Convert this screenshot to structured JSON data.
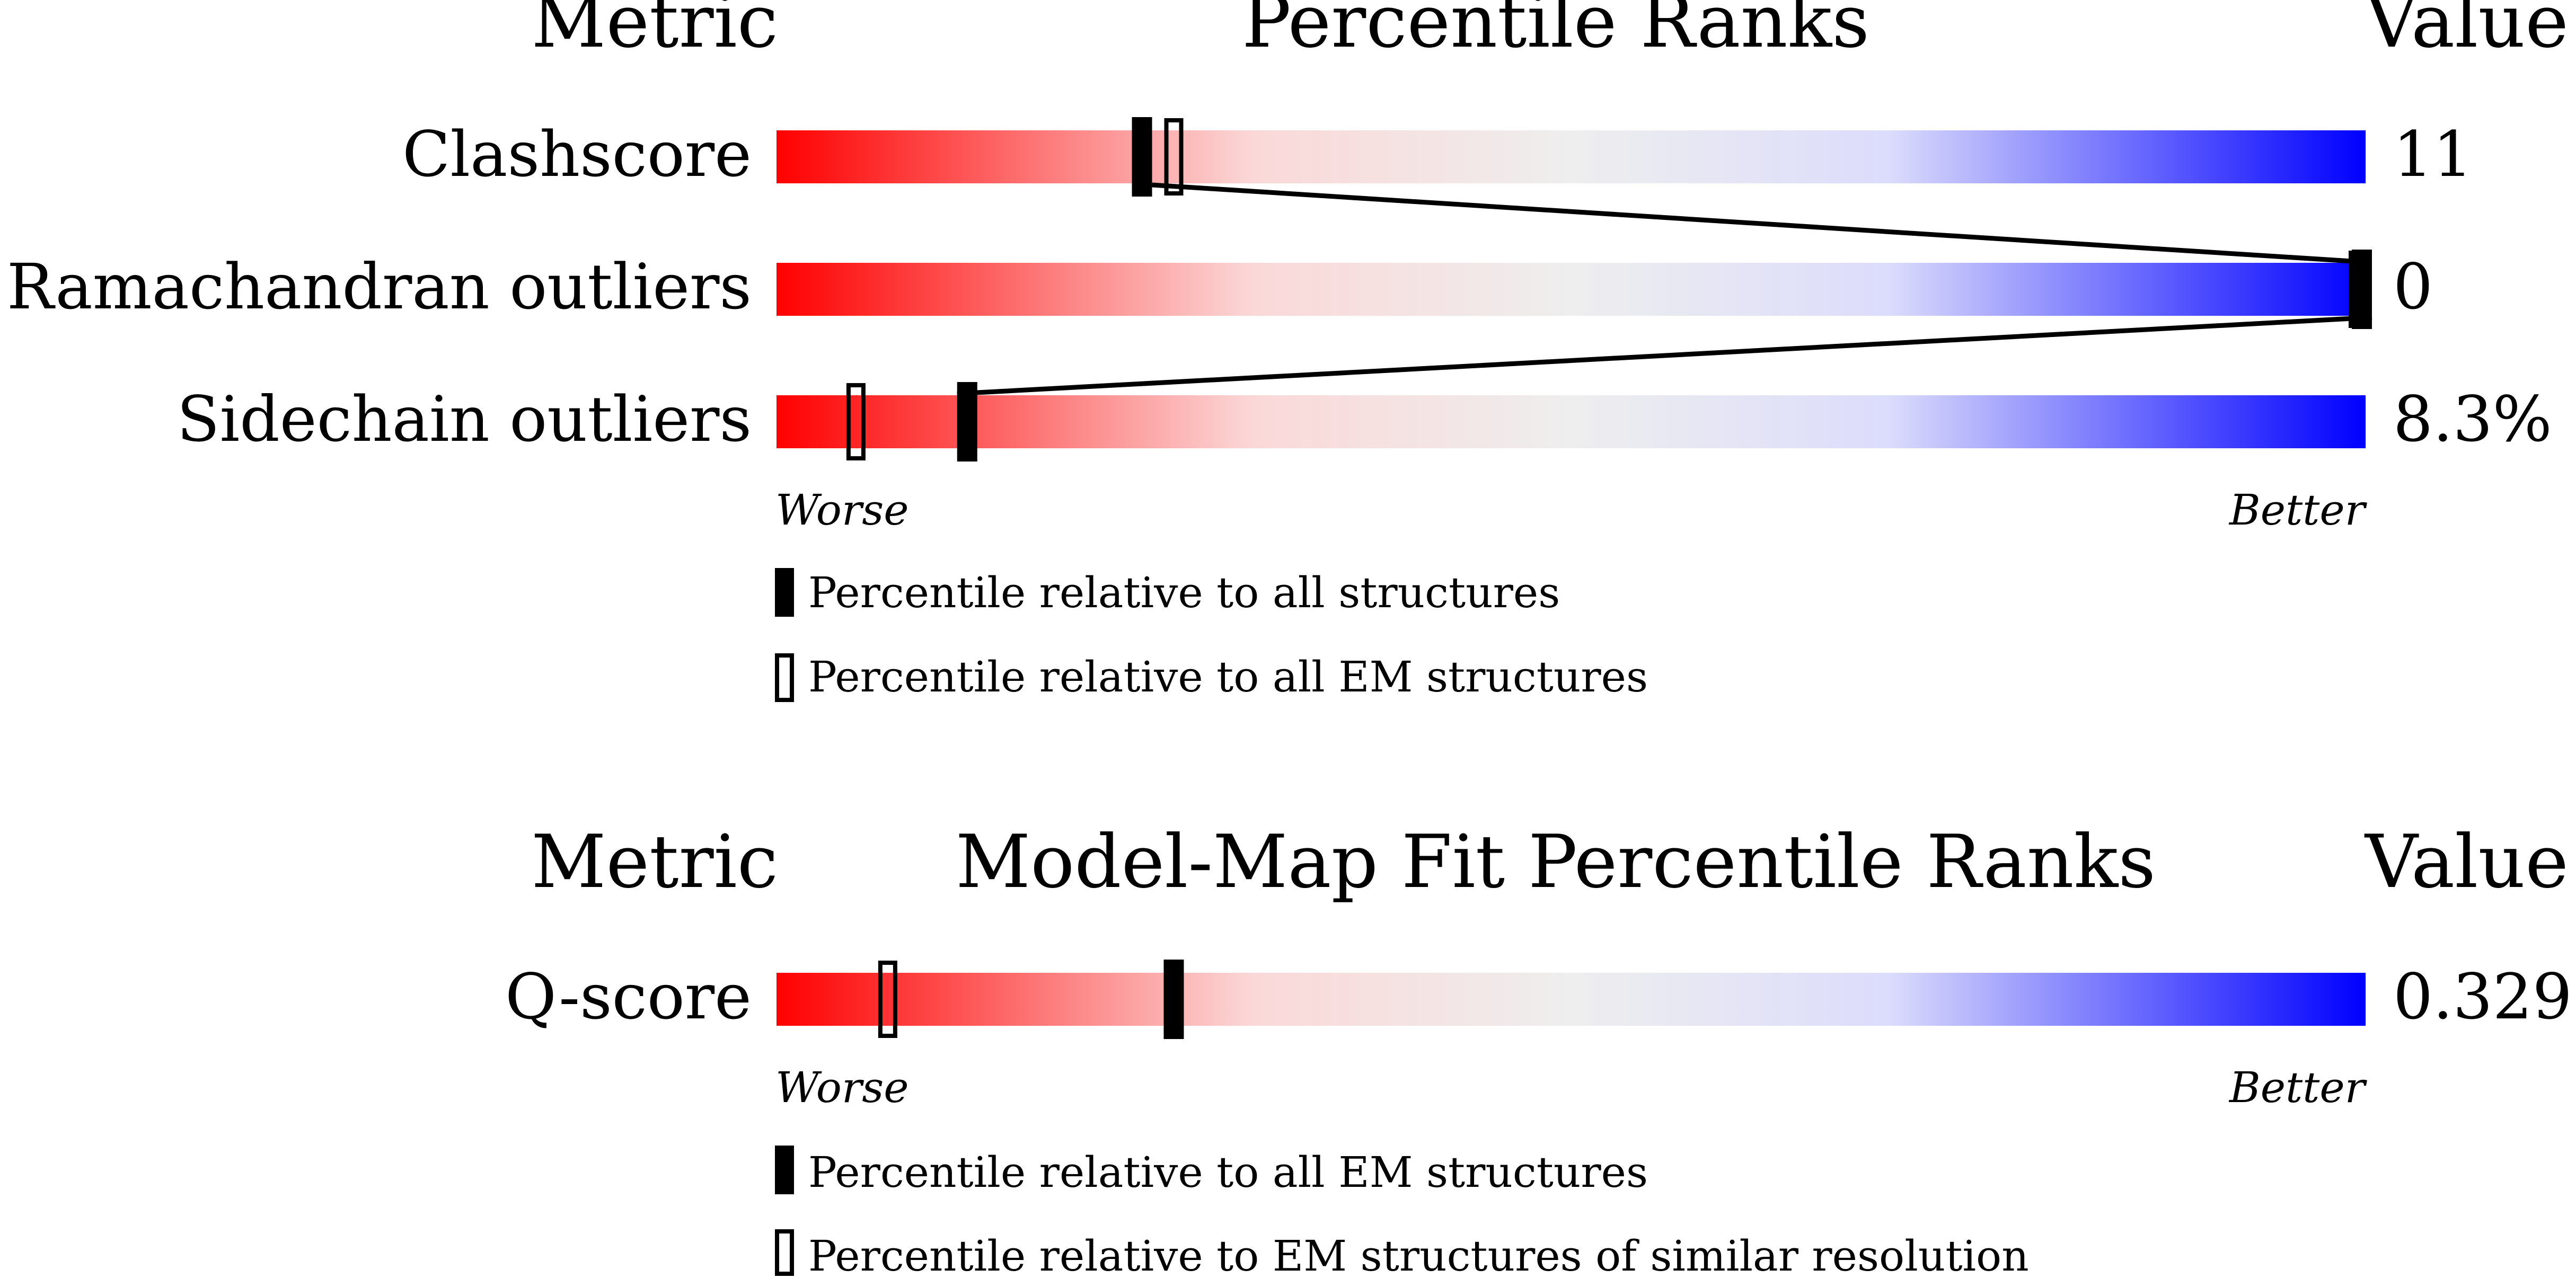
{
  "top_panel": {
    "header_metric": "Metric",
    "header_title": "Percentile Ranks",
    "header_value": "Value",
    "worse_label": "Worse",
    "better_label": "Better",
    "legend_filled": "Percentile relative to all structures",
    "legend_open": "Percentile relative to all EM structures"
  },
  "bottom_panel": {
    "header_metric": "Metric",
    "header_title": "Model-Map Fit Percentile Ranks",
    "header_value": "Value",
    "worse_label": "Worse",
    "better_label": "Better",
    "legend_filled": "Percentile relative to all EM structures",
    "legend_open": "Percentile relative to EM structures of similar resolution"
  },
  "colors": {
    "worse": "#ff0000",
    "mid": "#eeeeee",
    "better": "#0000ff",
    "marker": "#000000"
  },
  "chart_data": {
    "type": "bar",
    "xlim": [
      0,
      100
    ],
    "panels": [
      {
        "name": "Percentile Ranks",
        "metrics": [
          {
            "metric": "Clashscore",
            "value": "11",
            "percentile_filled": 23,
            "percentile_open": 25
          },
          {
            "metric": "Ramachandran outliers",
            "value": "0",
            "percentile_filled": 100,
            "percentile_open": 100
          },
          {
            "metric": "Sidechain outliers",
            "value": "8.3%",
            "percentile_filled": 12,
            "percentile_open": 5
          }
        ]
      },
      {
        "name": "Model-Map Fit Percentile Ranks",
        "metrics": [
          {
            "metric": "Q-score",
            "value": "0.329",
            "percentile_filled": 25,
            "percentile_open": 7
          }
        ]
      }
    ]
  }
}
